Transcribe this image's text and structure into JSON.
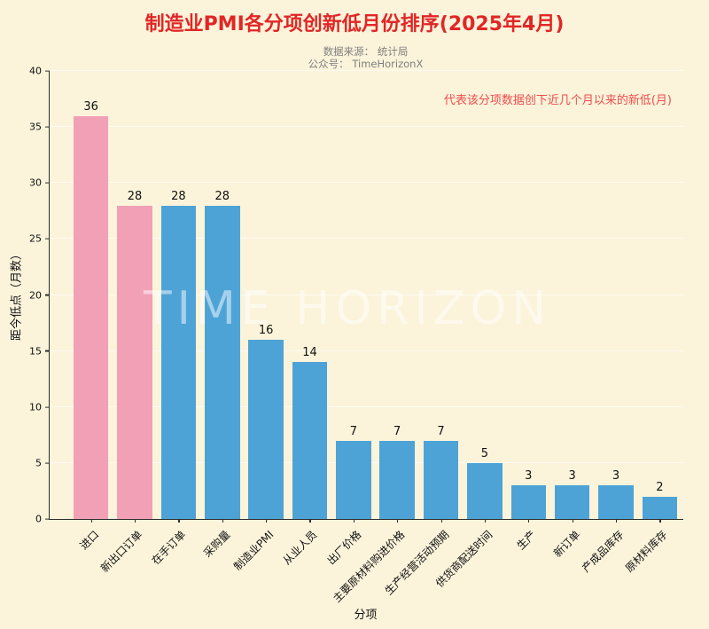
{
  "page": {
    "title": "制造业PMI各分项创新低月份排序(2025年4月)",
    "source_line": "数据来源： 统计局",
    "account_line": "公众号： TimeHorizonX",
    "annotation": "代表该分项数据创下近几个月以来的新低(月)",
    "watermark": "TIME HORIZON"
  },
  "colors": {
    "background": "#fbf3da",
    "title_red": "#e12626",
    "annotation_red": "#ee4d4d",
    "subtitle_gray": "#7f7f7f",
    "pink": "#f2a0b6",
    "blue": "#4da3d6",
    "axis": "#2f2f2f"
  },
  "chart_data": {
    "type": "bar",
    "title": "制造业PMI各分项创新低月份排序(2025年4月)",
    "xlabel": "分项",
    "ylabel": "距今低点（月数）",
    "ylim": [
      0,
      40
    ],
    "yticks": [
      0,
      5,
      10,
      15,
      20,
      25,
      30,
      35,
      40
    ],
    "categories": [
      "进口",
      "新出口订单",
      "在手订单",
      "采购量",
      "制造业PMI",
      "从业人员",
      "出厂价格",
      "主要原材料购进价格",
      "生产经营活动预期",
      "供货商配送时间",
      "生产",
      "新订单",
      "产成品库存",
      "原材料库存"
    ],
    "values": [
      36,
      28,
      28,
      28,
      16,
      14,
      7,
      7,
      7,
      5,
      3,
      3,
      3,
      2
    ],
    "bar_colors": [
      "pink",
      "pink",
      "blue",
      "blue",
      "blue",
      "blue",
      "blue",
      "blue",
      "blue",
      "blue",
      "blue",
      "blue",
      "blue",
      "blue"
    ],
    "grid": true,
    "legend_position": "none"
  }
}
